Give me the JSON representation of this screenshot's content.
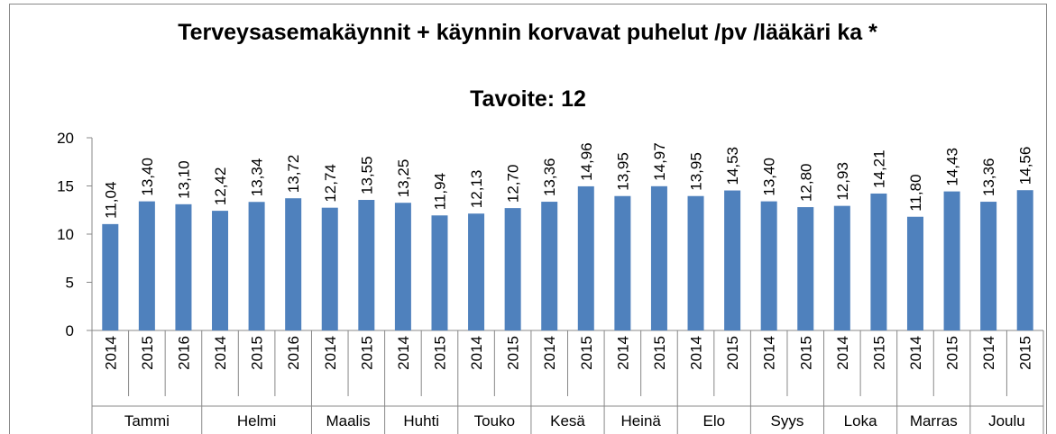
{
  "chart_data": {
    "type": "bar",
    "title": "Terveysasemakäynnit + käynnin korvavat puhelut /pv /lääkäri ka *",
    "subtitle": "Tavoite: 12",
    "color": "#4f81bd",
    "grid": false,
    "ylim": [
      0,
      20
    ],
    "yticks": [
      0,
      5,
      10,
      15,
      20
    ],
    "groups": [
      {
        "name": "Tammi",
        "categories": [
          "2014",
          "2015",
          "2016"
        ],
        "values": [
          11.04,
          13.4,
          13.1
        ],
        "value_labels": [
          "11,04",
          "13,40",
          "13,10"
        ]
      },
      {
        "name": "Helmi",
        "categories": [
          "2014",
          "2015",
          "2016"
        ],
        "values": [
          12.42,
          13.34,
          13.72
        ],
        "value_labels": [
          "12,42",
          "13,34",
          "13,72"
        ]
      },
      {
        "name": "Maalis",
        "categories": [
          "2014",
          "2015"
        ],
        "values": [
          12.74,
          13.55
        ],
        "value_labels": [
          "12,74",
          "13,55"
        ]
      },
      {
        "name": "Huhti",
        "categories": [
          "2014",
          "2015"
        ],
        "values": [
          13.25,
          11.94
        ],
        "value_labels": [
          "13,25",
          "11,94"
        ]
      },
      {
        "name": "Touko",
        "categories": [
          "2014",
          "2015"
        ],
        "values": [
          12.13,
          12.7
        ],
        "value_labels": [
          "12,13",
          "12,70"
        ]
      },
      {
        "name": "Kesä",
        "categories": [
          "2014",
          "2015"
        ],
        "values": [
          13.36,
          14.96
        ],
        "value_labels": [
          "13,36",
          "14,96"
        ]
      },
      {
        "name": "Heinä",
        "categories": [
          "2014",
          "2015"
        ],
        "values": [
          13.95,
          14.97
        ],
        "value_labels": [
          "13,95",
          "14,97"
        ]
      },
      {
        "name": "Elo",
        "categories": [
          "2014",
          "2015"
        ],
        "values": [
          13.95,
          14.53
        ],
        "value_labels": [
          "13,95",
          "14,53"
        ]
      },
      {
        "name": "Syys",
        "categories": [
          "2014",
          "2015"
        ],
        "values": [
          13.4,
          12.8
        ],
        "value_labels": [
          "13,40",
          "12,80"
        ]
      },
      {
        "name": "Loka",
        "categories": [
          "2014",
          "2015"
        ],
        "values": [
          12.93,
          14.21
        ],
        "value_labels": [
          "12,93",
          "14,21"
        ]
      },
      {
        "name": "Marras",
        "categories": [
          "2014",
          "2015"
        ],
        "values": [
          11.8,
          14.43
        ],
        "value_labels": [
          "11,80",
          "14,43"
        ]
      },
      {
        "name": "Joulu",
        "categories": [
          "2014",
          "2015"
        ],
        "values": [
          13.36,
          14.56
        ],
        "value_labels": [
          "13,36",
          "14,56"
        ]
      }
    ]
  }
}
